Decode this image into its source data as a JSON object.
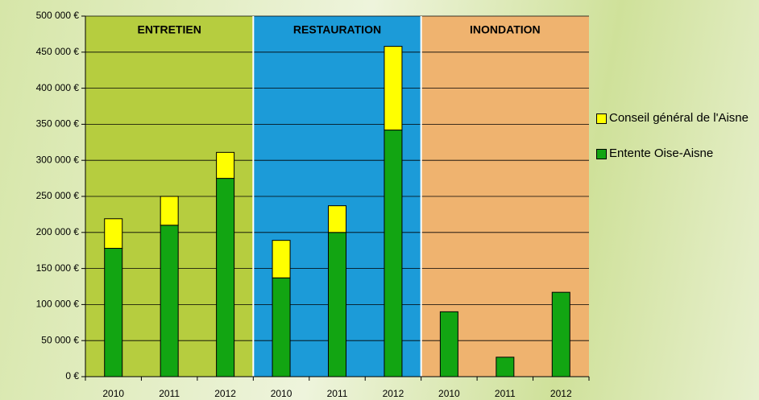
{
  "chart_data": {
    "type": "stacked_bar",
    "categories": [
      "2010",
      "2011",
      "2012",
      "2010",
      "2011",
      "2012",
      "2010",
      "2011",
      "2012"
    ],
    "groups": [
      {
        "label": "ENTRETIEN",
        "color": "#b6cd3f",
        "count": 3
      },
      {
        "label": "RESTAURATION",
        "color": "#1c9bd8",
        "count": 3
      },
      {
        "label": "INONDATION",
        "color": "#efb36f",
        "count": 3
      }
    ],
    "series": [
      {
        "name": "Entente Oise-Aisne",
        "color": "#12a512",
        "values": [
          178000,
          210000,
          275000,
          137000,
          200000,
          342000,
          90000,
          27000,
          117000
        ]
      },
      {
        "name": "Conseil général de l'Aisne",
        "color": "#ffff00",
        "values": [
          41000,
          40000,
          36000,
          52000,
          37000,
          116000,
          null,
          null,
          null
        ]
      }
    ],
    "ylim": [
      0,
      500000
    ],
    "yticks": [
      {
        "value": 0,
        "label": "0 €"
      },
      {
        "value": 50000,
        "label": "50 000 €"
      },
      {
        "value": 100000,
        "label": "100 000 €"
      },
      {
        "value": 150000,
        "label": "150 000 €"
      },
      {
        "value": 200000,
        "label": "200 000 €"
      },
      {
        "value": 250000,
        "label": "250 000 €"
      },
      {
        "value": 300000,
        "label": "300 000 €"
      },
      {
        "value": 350000,
        "label": "350 000 €"
      },
      {
        "value": 400000,
        "label": "400 000 €"
      },
      {
        "value": 450000,
        "label": "450 000 €"
      },
      {
        "value": 500000,
        "label": "500 000 €"
      }
    ],
    "grid": true
  }
}
